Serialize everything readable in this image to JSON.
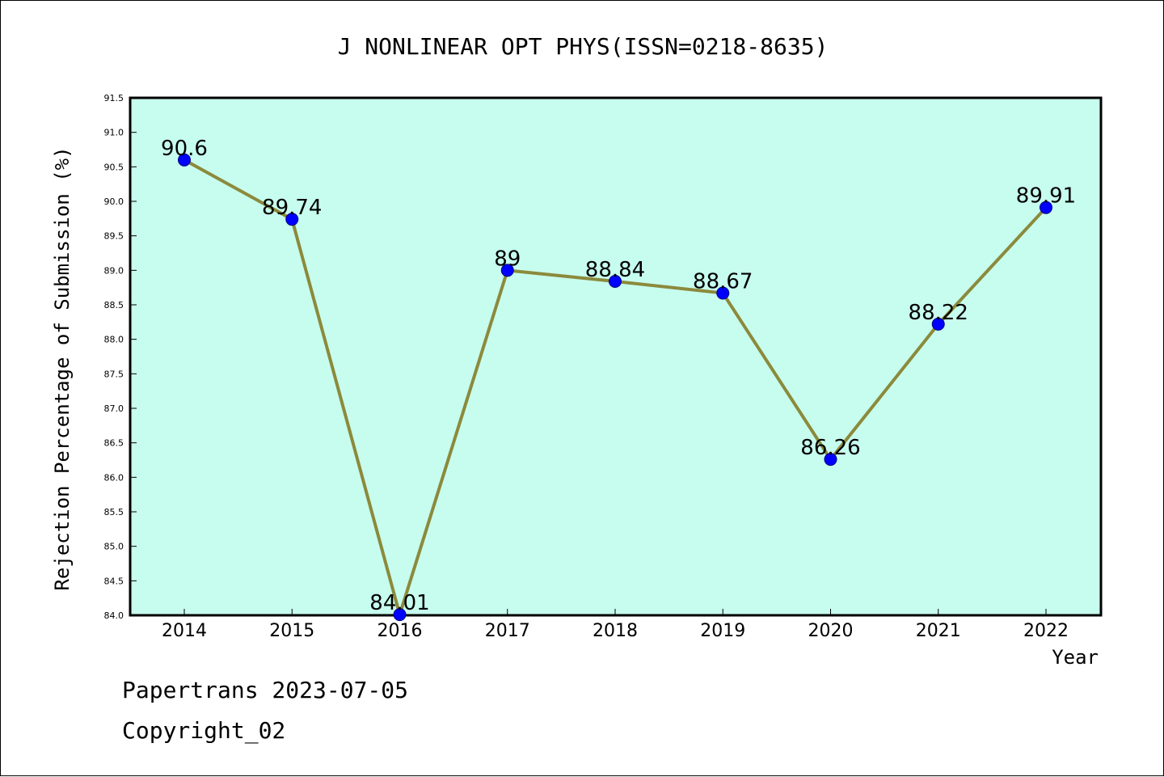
{
  "chart_data": {
    "type": "line",
    "title": "J NONLINEAR OPT PHYS(ISSN=0218-8635)",
    "xlabel": "Year",
    "ylabel": "Rejection Percentage of Submission (%)",
    "categories": [
      "2014",
      "2015",
      "2016",
      "2017",
      "2018",
      "2019",
      "2020",
      "2021",
      "2022"
    ],
    "values": [
      90.6,
      89.74,
      84.01,
      89,
      88.84,
      88.67,
      86.26,
      88.22,
      89.91
    ],
    "data_labels": [
      "90.6",
      "89.74",
      "84.01",
      "89",
      "88.84",
      "88.67",
      "86.26",
      "88.22",
      "89.91"
    ],
    "ylim": [
      84.0,
      91.5
    ],
    "yticks": [
      "84.0",
      "84.5",
      "85.0",
      "85.5",
      "86.0",
      "86.5",
      "87.0",
      "87.5",
      "88.0",
      "88.5",
      "89.0",
      "89.5",
      "90.0",
      "90.5",
      "91.0",
      "91.5"
    ],
    "grid": false,
    "legend": "none",
    "colors": {
      "plot_background": "#c7fdee",
      "line": "#8b8a3c",
      "marker": "#0000ff"
    }
  },
  "footer": {
    "line1": "Papertrans 2023-07-05",
    "line2": "Copyright_02"
  }
}
